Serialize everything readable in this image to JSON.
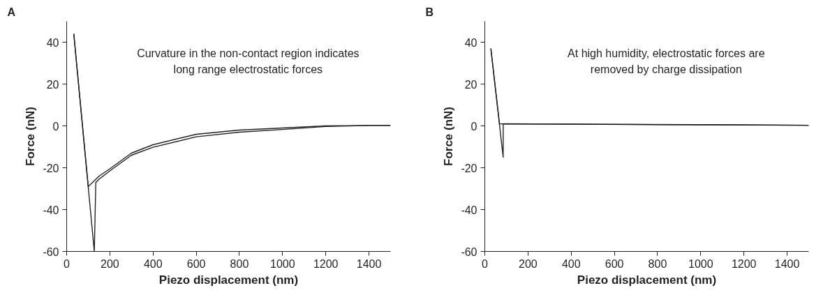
{
  "chart_data": [
    {
      "type": "line",
      "title": "A",
      "xlabel": "Piezo displacement (nm)",
      "ylabel": "Force (nN)",
      "xlim": [
        0,
        1500
      ],
      "ylim": [
        -60,
        50
      ],
      "xticks": [
        0,
        200,
        400,
        600,
        800,
        1000,
        1200,
        1400
      ],
      "yticks": [
        -60,
        -40,
        -20,
        0,
        20,
        40
      ],
      "grid": false,
      "marker": "none",
      "line_style": "solid",
      "annotations": [
        "Curvature in the non-contact region indicates\nlong range electrostatic forces"
      ],
      "series": [
        {
          "color": "#231f20",
          "x": [
            1500,
            1400,
            1200,
            1000,
            800,
            600,
            400,
            300,
            200,
            150,
            100,
            33
          ],
          "values": [
            0.2,
            0.2,
            0,
            -1,
            -2,
            -4,
            -9,
            -13,
            -20.5,
            -24,
            -29,
            44
          ]
        },
        {
          "color": "#231f20",
          "x": [
            33,
            128,
            135,
            150,
            200,
            300,
            400,
            600,
            800,
            1000,
            1200,
            1400,
            1500
          ],
          "values": [
            44,
            -60,
            -27,
            -25.5,
            -21.5,
            -14,
            -10.2,
            -5.2,
            -3,
            -1.7,
            -0.3,
            0.2,
            0.2
          ]
        }
      ]
    },
    {
      "type": "line",
      "title": "B",
      "xlabel": "Piezo displacement (nm)",
      "ylabel": "Force (nN)",
      "xlim": [
        0,
        1500
      ],
      "ylim": [
        -60,
        50
      ],
      "xticks": [
        0,
        200,
        400,
        600,
        800,
        1000,
        1200,
        1400
      ],
      "yticks": [
        -60,
        -40,
        -20,
        0,
        20,
        40
      ],
      "grid": false,
      "marker": "none",
      "line_style": "solid",
      "annotations": [
        "At high humidity, electrostatic forces are\nremoved by charge dissipation"
      ],
      "series": [
        {
          "color": "#231f20",
          "x": [
            1500,
            1000,
            500,
            68,
            28
          ],
          "values": [
            0.3,
            0.6,
            0.8,
            1,
            37
          ]
        },
        {
          "color": "#231f20",
          "x": [
            28,
            85,
            85,
            300,
            800,
            1500
          ],
          "values": [
            37,
            -15,
            1,
            0.9,
            0.6,
            0.3
          ]
        }
      ]
    }
  ]
}
